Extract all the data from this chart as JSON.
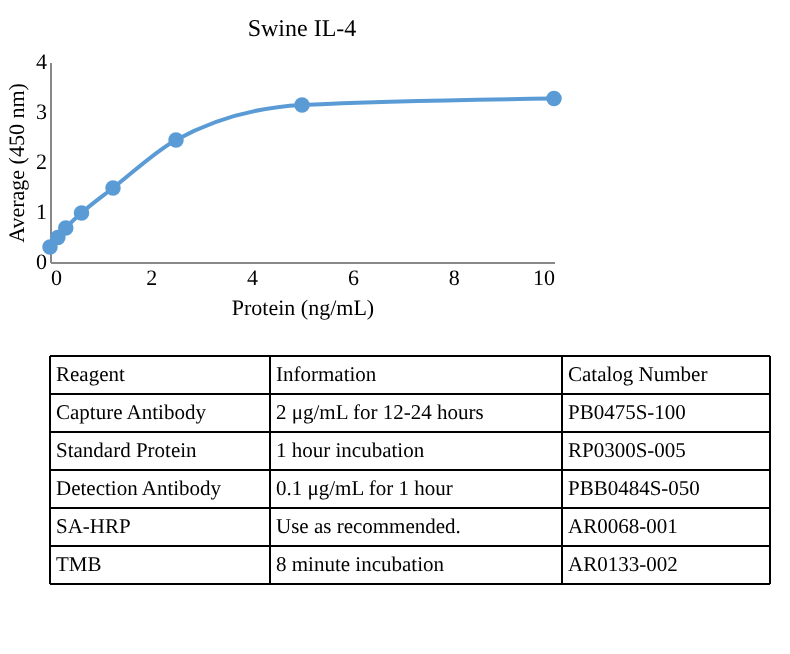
{
  "chart_data": {
    "type": "line",
    "title": "Swine IL-4",
    "xlabel": "Protein (ng/mL)",
    "ylabel": "Average (450 nm)",
    "x": [
      0,
      0.156,
      0.3125,
      0.625,
      1.25,
      2.5,
      5,
      10
    ],
    "series": [
      {
        "color": "#5b9bd5",
        "values": [
          0.3,
          0.49,
          0.68,
          0.98,
          1.48,
          2.44,
          3.14,
          3.27
        ]
      }
    ],
    "xlim": [
      0,
      10
    ],
    "xticks": [
      0,
      2,
      4,
      6,
      8,
      10
    ],
    "ylim": [
      0,
      4
    ],
    "yticks": [
      0,
      1,
      2,
      3,
      4
    ],
    "grid": false,
    "marker": "circle",
    "line_style": "solid",
    "annotations": [
      "Reagent",
      "Information",
      "Catalog Number",
      "Capture Antibody",
      "2 μg/mL for 12-24 hours",
      "PB0475S-100",
      "Standard Protein",
      "1 hour incubation",
      "RP0300S-005",
      "Detection Antibody",
      "0.1 μg/mL for 1 hour",
      "PBB0484S-050",
      "SA-HRP",
      "Use as recommended.",
      "AR0068-001",
      "TMB",
      "8 minute incubation",
      "AR0133-002"
    ]
  }
}
